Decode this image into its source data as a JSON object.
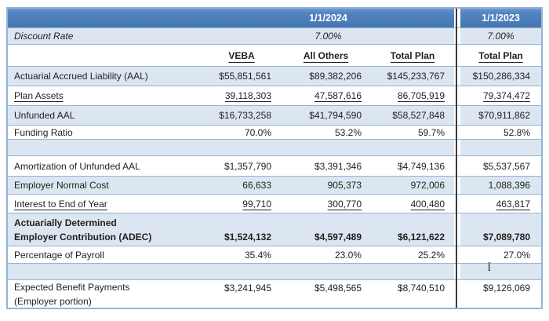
{
  "colors": {
    "header_blue": "#4F81BD",
    "band_blue": "#DCE6F1",
    "border_blue": "#95B3D7",
    "divider_dark": "#3B3B3B",
    "text": "#1F1F1F",
    "header_text": "#FFFFFF"
  },
  "header": {
    "year_2024": "1/1/2024",
    "year_2023": "1/1/2023"
  },
  "discount_rate": {
    "label": "Discount Rate",
    "rate_2024": "7.00%",
    "rate_2023": "7.00%"
  },
  "columns": {
    "veba": "VEBA",
    "all_others": "All Others",
    "total_plan": "Total Plan",
    "total_plan_prior": "Total Plan"
  },
  "rows": {
    "aal": {
      "label": "Actuarial Accrued Liability (AAL)",
      "veba": "$55,851,561",
      "all_others": "$89,382,206",
      "total_plan": "$145,233,767",
      "prior": "$150,286,334"
    },
    "plan_assets": {
      "label": "Plan Assets",
      "veba": "39,118,303",
      "all_others": "47,587,616",
      "total_plan": "86,705,919",
      "prior": "79,374,472"
    },
    "unfunded_aal": {
      "label": "Unfunded AAL",
      "veba": "$16,733,258",
      "all_others": "$41,794,590",
      "total_plan": "$58,527,848",
      "prior": "$70,911,862"
    },
    "funding_ratio": {
      "label": "Funding Ratio",
      "veba": "70.0%",
      "all_others": "53.2%",
      "total_plan": "59.7%",
      "prior": "52.8%"
    },
    "amortization": {
      "label": "Amortization of Unfunded AAL",
      "veba": "$1,357,790",
      "all_others": "$3,391,346",
      "total_plan": "$4,749,136",
      "prior": "$5,537,567"
    },
    "normal_cost": {
      "label": "Employer Normal Cost",
      "veba": "66,633",
      "all_others": "905,373",
      "total_plan": "972,006",
      "prior": "1,088,396"
    },
    "interest": {
      "label": "Interest to End of Year",
      "veba": "99,710",
      "all_others": "300,770",
      "total_plan": "400,480",
      "prior": "463,817"
    },
    "adec": {
      "label_line1": "Actuarially Determined",
      "label_line2": "Employer Contribution (ADEC)",
      "veba": "$1,524,132",
      "all_others": "$4,597,489",
      "total_plan": "$6,121,622",
      "prior": "$7,089,780"
    },
    "pct_payroll": {
      "label": "Percentage of Payroll",
      "veba": "35.4%",
      "all_others": "23.0%",
      "total_plan": "25.2%",
      "prior": "27.0%"
    },
    "expected_benefits": {
      "label_line1": "Expected Benefit Payments",
      "label_line2": "(Employer portion)",
      "veba": "$3,241,945",
      "all_others": "$5,498,565",
      "total_plan": "$8,740,510",
      "prior": "$9,126,069"
    }
  },
  "icons": {
    "text_cursor": "I"
  }
}
